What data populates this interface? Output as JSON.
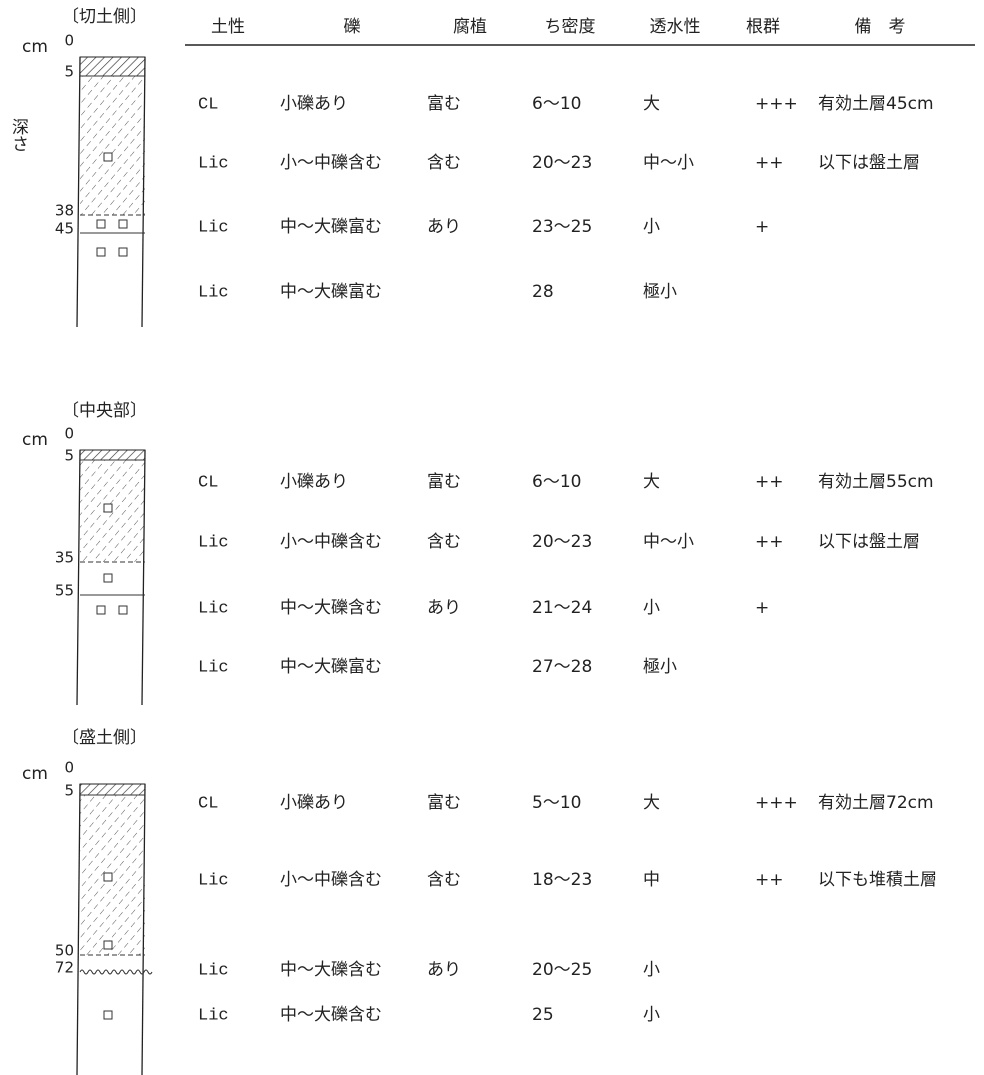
{
  "header": {
    "columns": [
      "土性",
      "礫",
      "腐植",
      "ち密度",
      "透水性",
      "根群",
      "備　考"
    ]
  },
  "depth_label": "深さ",
  "unit": "cm",
  "sections": [
    {
      "label": "〔切土側〕",
      "depths": [
        0,
        5,
        38,
        45
      ],
      "rows": [
        {
          "soil": "CL",
          "gravel": "小礫あり",
          "humus": "富む",
          "density": "6～10",
          "permeability": "大",
          "roots": "+++",
          "remarks": "有効土層45cm"
        },
        {
          "soil": "Lic",
          "gravel": "小～中礫含む",
          "humus": "含む",
          "density": "20～23",
          "permeability": "中～小",
          "roots": "++",
          "remarks": "以下は盤土層"
        },
        {
          "soil": "Lic",
          "gravel": "中～大礫富む",
          "humus": "あり",
          "density": "23～25",
          "permeability": "小",
          "roots": "+"
        },
        {
          "soil": "Lic",
          "gravel": "中～大礫富む",
          "density": "28",
          "permeability": "極小"
        }
      ]
    },
    {
      "label": "〔中央部〕",
      "depths": [
        0,
        5,
        35,
        55
      ],
      "rows": [
        {
          "soil": "CL",
          "gravel": "小礫あり",
          "humus": "富む",
          "density": "6～10",
          "permeability": "大",
          "roots": "++",
          "remarks": "有効土層55cm"
        },
        {
          "soil": "Lic",
          "gravel": "小～中礫含む",
          "humus": "含む",
          "density": "20～23",
          "permeability": "中～小",
          "roots": "++",
          "remarks": "以下は盤土層"
        },
        {
          "soil": "Lic",
          "gravel": "中～大礫含む",
          "humus": "あり",
          "density": "21～24",
          "permeability": "小",
          "roots": "+"
        },
        {
          "soil": "Lic",
          "gravel": "中～大礫富む",
          "density": "27～28",
          "permeability": "極小"
        }
      ]
    },
    {
      "label": "〔盛土側〕",
      "depths": [
        0,
        5,
        50,
        72
      ],
      "rows": [
        {
          "soil": "CL",
          "gravel": "小礫あり",
          "humus": "富む",
          "density": "5～10",
          "permeability": "大",
          "roots": "+++",
          "remarks": "有効土層72cm"
        },
        {
          "soil": "Lic",
          "gravel": "小～中礫含む",
          "humus": "含む",
          "density": "18～23",
          "permeability": "中",
          "roots": "++",
          "remarks": "以下も堆積土層"
        },
        {
          "soil": "Lic",
          "gravel": "中～大礫含む",
          "humus": "あり",
          "density": "20～25",
          "permeability": "小"
        },
        {
          "soil": "Lic",
          "gravel": "中～大礫含む",
          "density": "25",
          "permeability": "小"
        }
      ]
    }
  ]
}
